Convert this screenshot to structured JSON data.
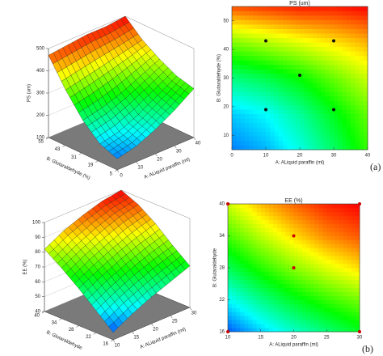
{
  "chart_data": [
    {
      "type": "surface3d",
      "zlabel": "PS (um)",
      "xlabel": "A: ALiquid paraffin (ml)",
      "ylabel": "B: Glutaraldehyde (%)",
      "x": [
        0,
        10,
        20,
        30,
        40
      ],
      "y": [
        5,
        17.5,
        30,
        42.5,
        55
      ],
      "z": [
        [
          150,
          170,
          210,
          260,
          320
        ],
        [
          180,
          200,
          240,
          290,
          340
        ],
        [
          250,
          270,
          300,
          340,
          380
        ],
        [
          350,
          370,
          390,
          410,
          430
        ],
        [
          470,
          480,
          490,
          490,
          500
        ]
      ],
      "xlim": [
        0,
        40
      ],
      "ylim": [
        5,
        55
      ],
      "zlim": [
        100,
        500
      ],
      "xticks": [
        0,
        10,
        20,
        30,
        40
      ],
      "yticks": [
        5,
        19,
        31,
        43,
        55
      ],
      "zticks": [
        100,
        200,
        300,
        400,
        500
      ]
    },
    {
      "type": "contour",
      "title": "PS (um)",
      "xlabel": "A: ALiquid paraffin (ml)",
      "ylabel": "B: Glutaraldehyde (%)",
      "panel_label": "(a)",
      "x": [
        0,
        10,
        20,
        30,
        40
      ],
      "y": [
        5,
        17.5,
        30,
        42.5,
        55
      ],
      "z": [
        [
          150,
          170,
          210,
          260,
          320
        ],
        [
          180,
          200,
          240,
          290,
          340
        ],
        [
          250,
          270,
          300,
          340,
          380
        ],
        [
          350,
          370,
          390,
          410,
          430
        ],
        [
          470,
          480,
          490,
          490,
          500
        ]
      ],
      "xlim": [
        0,
        40
      ],
      "ylim": [
        5,
        55
      ],
      "zlim": [
        100,
        500
      ],
      "xticks": [
        0,
        10,
        20,
        30,
        40
      ],
      "yticks": [
        10,
        20,
        30,
        40,
        50
      ],
      "points": {
        "x": [
          10,
          30,
          20,
          10,
          30
        ],
        "y": [
          43,
          43,
          31,
          19,
          19
        ]
      },
      "point_color": "#111"
    },
    {
      "type": "surface3d",
      "zlabel": "EE (%)",
      "xlabel": "A: ALiquid paraffin (ml)",
      "ylabel": "B: Glutaraldehyde",
      "x": [
        10,
        15,
        20,
        25,
        30
      ],
      "y": [
        16,
        22,
        28,
        34,
        40
      ],
      "z": [
        [
          45,
          52,
          58,
          63,
          68
        ],
        [
          55,
          62,
          68,
          73,
          77
        ],
        [
          65,
          72,
          78,
          83,
          87
        ],
        [
          74,
          81,
          87,
          92,
          95
        ],
        [
          82,
          89,
          94,
          98,
          100
        ]
      ],
      "xlim": [
        10,
        30
      ],
      "ylim": [
        16,
        40
      ],
      "zlim": [
        40,
        100
      ],
      "xticks": [
        10,
        15,
        20,
        25,
        30
      ],
      "yticks": [
        16,
        22,
        28,
        34,
        40
      ],
      "zticks": [
        40,
        50,
        60,
        70,
        80,
        90,
        100
      ]
    },
    {
      "type": "contour",
      "title": "EE (%)",
      "xlabel": "A: ALiquid paraffin (ml)",
      "ylabel": "B: Glutaraldehyde",
      "panel_label": "(b)",
      "x": [
        10,
        15,
        20,
        25,
        30
      ],
      "y": [
        16,
        22,
        28,
        34,
        40
      ],
      "z": [
        [
          45,
          52,
          58,
          63,
          68
        ],
        [
          55,
          62,
          68,
          73,
          77
        ],
        [
          65,
          72,
          78,
          83,
          87
        ],
        [
          74,
          81,
          87,
          92,
          95
        ],
        [
          82,
          89,
          94,
          98,
          100
        ]
      ],
      "xlim": [
        10,
        30
      ],
      "ylim": [
        16,
        40
      ],
      "zlim": [
        40,
        100
      ],
      "xticks": [
        10,
        15,
        20,
        25,
        30
      ],
      "yticks": [
        16,
        22,
        28,
        34,
        40
      ],
      "points": {
        "x": [
          20,
          20,
          10,
          30,
          10,
          30
        ],
        "y": [
          34,
          28,
          16,
          40,
          40,
          16
        ]
      },
      "point_color": "#c00"
    }
  ]
}
